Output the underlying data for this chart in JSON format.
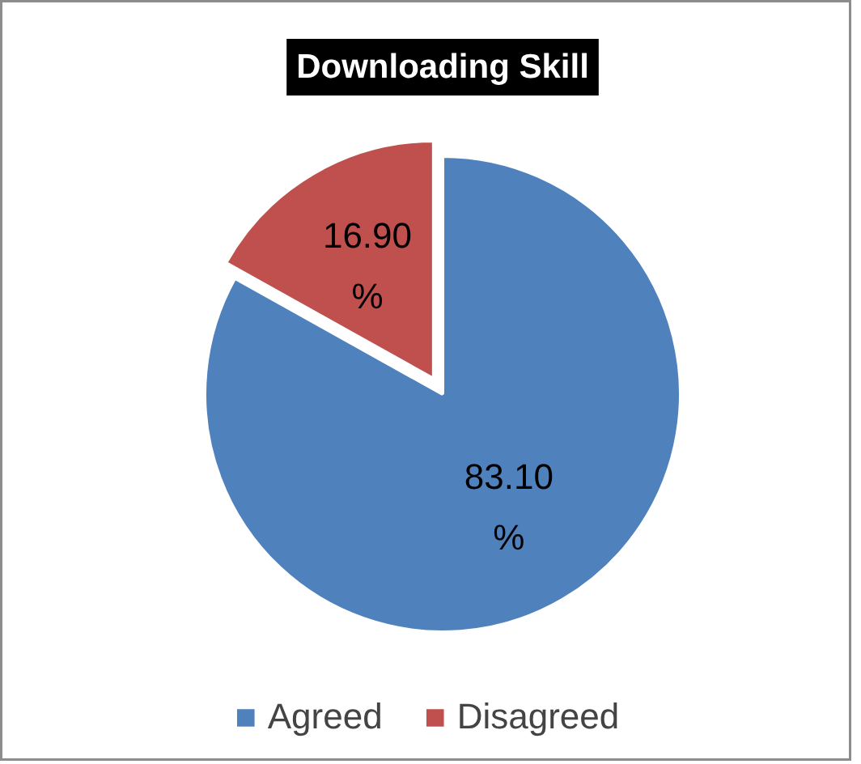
{
  "chart_data": {
    "type": "pie",
    "title": "Downloading Skill",
    "categories": [
      "Agreed",
      "Disagreed"
    ],
    "values": [
      83.1,
      16.9
    ],
    "colors": [
      "#4f81bd",
      "#c0504d"
    ],
    "value_labels": [
      "83.10 %",
      "16.90 %"
    ],
    "legend": "bottom"
  }
}
